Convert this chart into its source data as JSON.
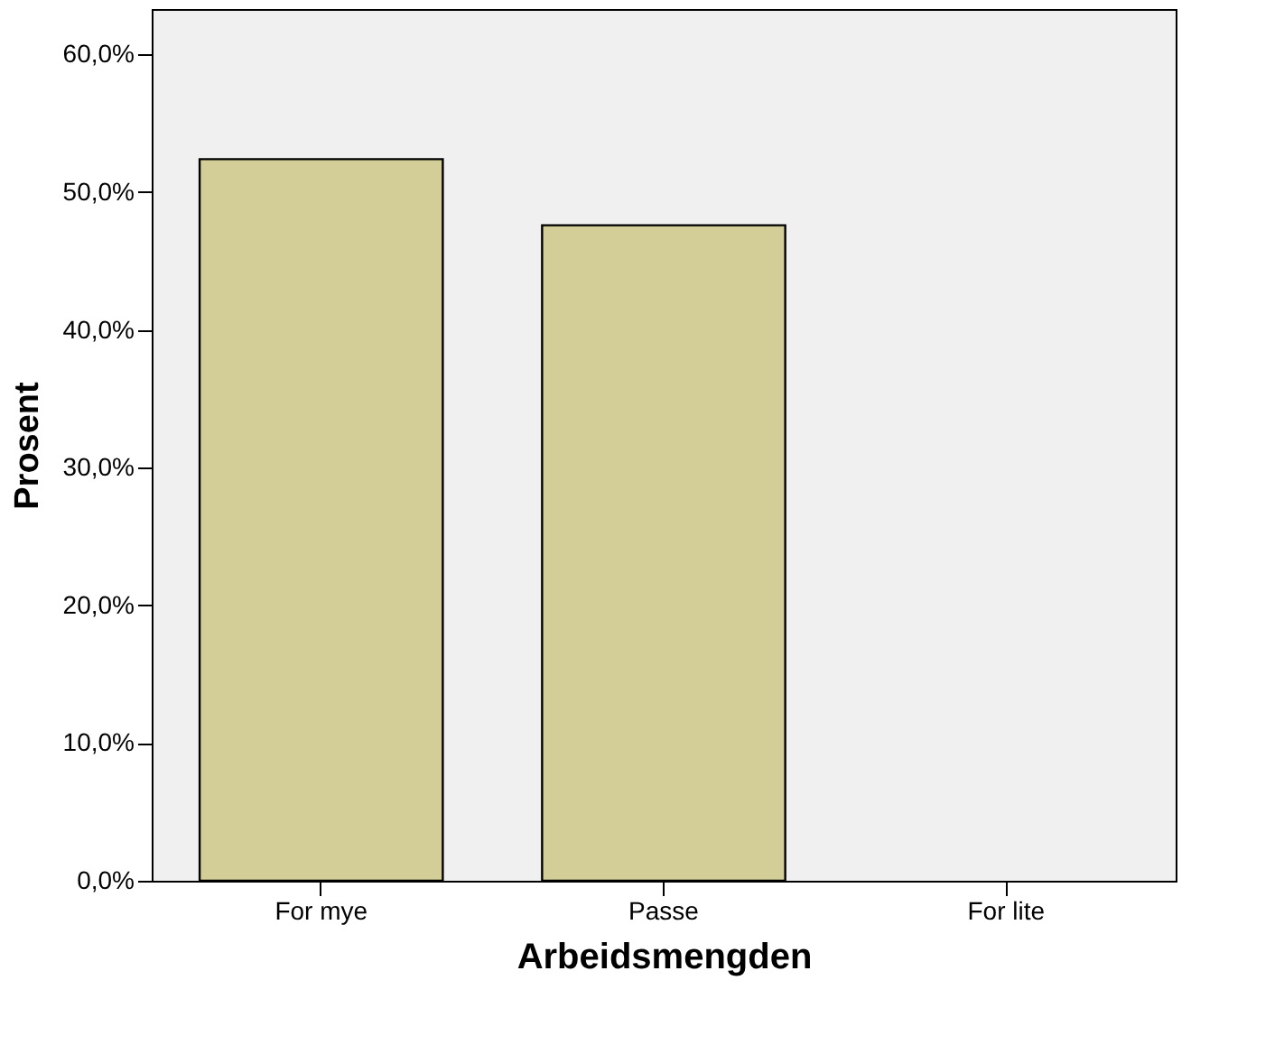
{
  "chart_data": {
    "type": "bar",
    "xlabel": "Arbeidsmengden",
    "ylabel": "Prosent",
    "categories": [
      "For mye",
      "Passe",
      "For lite"
    ],
    "values": [
      52.4,
      47.6,
      0
    ],
    "color": "#d3ce98",
    "ylim": [
      0,
      63.3
    ],
    "yticks": [
      {
        "value": 0,
        "label": "0,0%"
      },
      {
        "value": 10,
        "label": "10,0%"
      },
      {
        "value": 20,
        "label": "20,0%"
      },
      {
        "value": 30,
        "label": "30,0%"
      },
      {
        "value": 40,
        "label": "40,0%"
      },
      {
        "value": 50,
        "label": "50,0%"
      },
      {
        "value": 60,
        "label": "60,0%"
      }
    ],
    "grid": false
  }
}
